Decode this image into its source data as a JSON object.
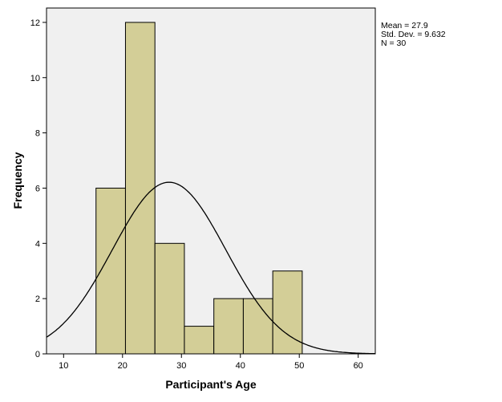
{
  "chart_data": {
    "type": "bar",
    "subtype": "histogram",
    "xlabel": "Participant's Age",
    "ylabel": "Frequency",
    "xlim": [
      7.1,
      62.9
    ],
    "ylim": [
      0,
      12.52
    ],
    "xticks": [
      10,
      20,
      30,
      40,
      50,
      60
    ],
    "yticks": [
      0,
      2,
      4,
      6,
      8,
      10,
      12
    ],
    "bin_start": 15.5,
    "bin_width": 5,
    "values": [
      6,
      12,
      4,
      1,
      2,
      2,
      3
    ],
    "normal_curve": {
      "mean": 27.9,
      "sd": 9.632,
      "n": 30
    },
    "stats_text": [
      "Mean = 27.9",
      "Std. Dev. = 9.632",
      "N = 30"
    ],
    "grid": false,
    "legend_position": "top-right",
    "colors": {
      "bar": "#d3ce97",
      "plot_bg": "#f0f0f0",
      "curve": "#000000"
    }
  }
}
